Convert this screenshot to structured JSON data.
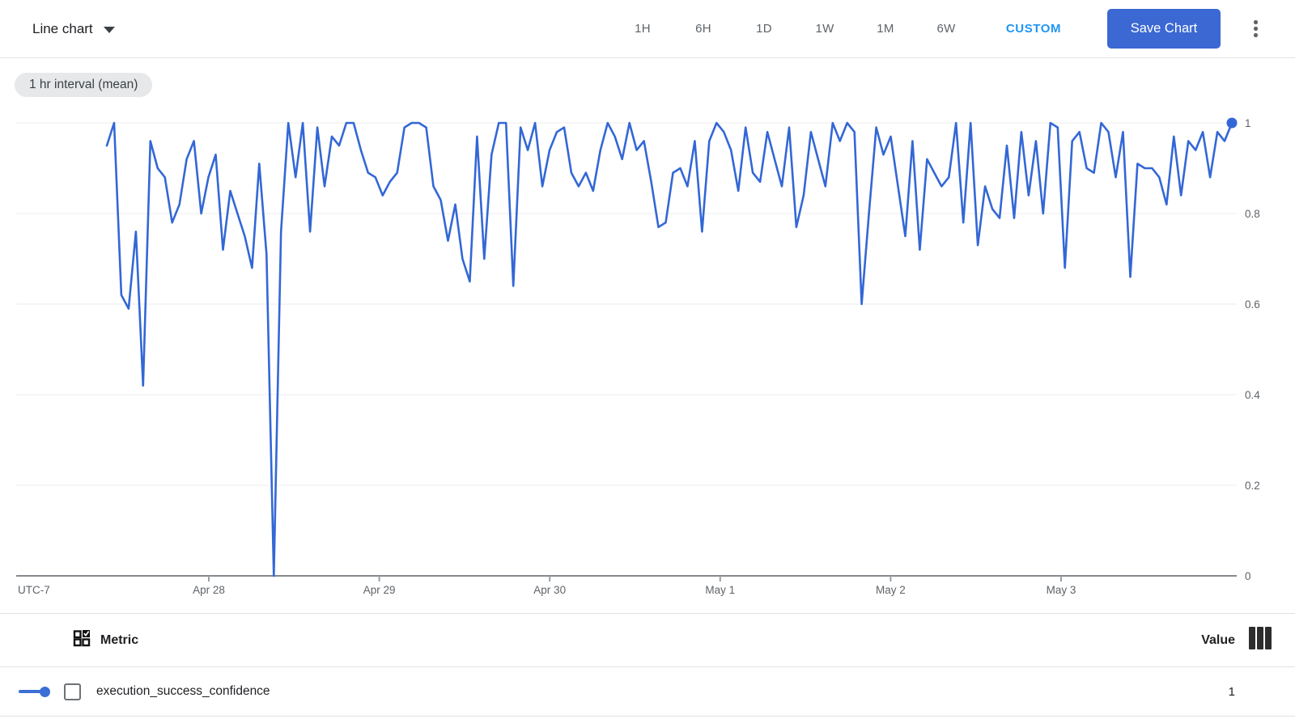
{
  "toolbar": {
    "chart_type_label": "Line chart",
    "time_ranges": [
      "1H",
      "6H",
      "1D",
      "1W",
      "1M",
      "6W"
    ],
    "custom_label": "CUSTOM",
    "save_button_label": "Save Chart"
  },
  "chip": {
    "label": "1 hr interval (mean)"
  },
  "chart_data": {
    "type": "line",
    "title": "",
    "xlabel": "",
    "ylabel": "",
    "grid": true,
    "legend_position": "bottom-table",
    "x_axis": {
      "timezone_label": "UTC-7",
      "tick_labels": [
        "Apr 28",
        "Apr 29",
        "Apr 30",
        "May 1",
        "May 2",
        "May 3"
      ],
      "interval": "1 hr"
    },
    "y_axis": {
      "tick_labels": [
        "0",
        "0.2",
        "0.4",
        "0.6",
        "0.8",
        "1"
      ],
      "range": [
        0,
        1
      ]
    },
    "series": [
      {
        "name": "execution_success_confidence",
        "color": "#3367d6",
        "aggregation": "1 hr interval (mean)",
        "last_value": 1,
        "values": [
          0.95,
          1.0,
          0.62,
          0.59,
          0.76,
          0.42,
          0.96,
          0.9,
          0.88,
          0.78,
          0.82,
          0.92,
          0.96,
          0.8,
          0.88,
          0.93,
          0.72,
          0.85,
          0.8,
          0.75,
          0.68,
          0.91,
          0.71,
          0.0,
          0.76,
          1.0,
          0.88,
          1.0,
          0.76,
          0.99,
          0.86,
          0.97,
          0.95,
          1.0,
          1.0,
          0.94,
          0.89,
          0.88,
          0.84,
          0.87,
          0.89,
          0.99,
          1.0,
          1.0,
          0.99,
          0.86,
          0.83,
          0.74,
          0.82,
          0.7,
          0.65,
          0.97,
          0.7,
          0.93,
          1.0,
          1.0,
          0.64,
          0.99,
          0.94,
          1.0,
          0.86,
          0.94,
          0.98,
          0.99,
          0.89,
          0.86,
          0.89,
          0.85,
          0.94,
          1.0,
          0.97,
          0.92,
          1.0,
          0.94,
          0.96,
          0.87,
          0.77,
          0.78,
          0.89,
          0.9,
          0.86,
          0.96,
          0.76,
          0.96,
          1.0,
          0.98,
          0.94,
          0.85,
          0.99,
          0.89,
          0.87,
          0.98,
          0.92,
          0.86,
          0.99,
          0.77,
          0.84,
          0.98,
          0.92,
          0.86,
          1.0,
          0.96,
          1.0,
          0.98,
          0.6,
          0.8,
          0.99,
          0.93,
          0.97,
          0.86,
          0.75,
          0.96,
          0.72,
          0.92,
          0.89,
          0.86,
          0.88,
          1.0,
          0.78,
          1.0,
          0.73,
          0.86,
          0.81,
          0.79,
          0.95,
          0.79,
          0.98,
          0.84,
          0.96,
          0.8,
          1.0,
          0.99,
          0.68,
          0.96,
          0.98,
          0.9,
          0.89,
          1.0,
          0.98,
          0.88,
          0.98,
          0.66,
          0.91,
          0.9,
          0.9,
          0.88,
          0.82,
          0.97,
          0.84,
          0.96,
          0.94,
          0.98,
          0.88,
          0.98,
          0.96,
          1.0
        ]
      }
    ]
  },
  "table": {
    "metric_header": "Metric",
    "value_header": "Value",
    "rows": [
      {
        "metric": "execution_success_confidence",
        "value": "1"
      }
    ]
  },
  "colors": {
    "line_blue": "#3367d6",
    "custom_active_blue": "#2196f3",
    "save_button_blue": "#3b68d2",
    "chip_background": "#e7e8ea",
    "gridline": "#ececec",
    "axis_line": "#85898d",
    "muted_text": "#5f6368"
  }
}
